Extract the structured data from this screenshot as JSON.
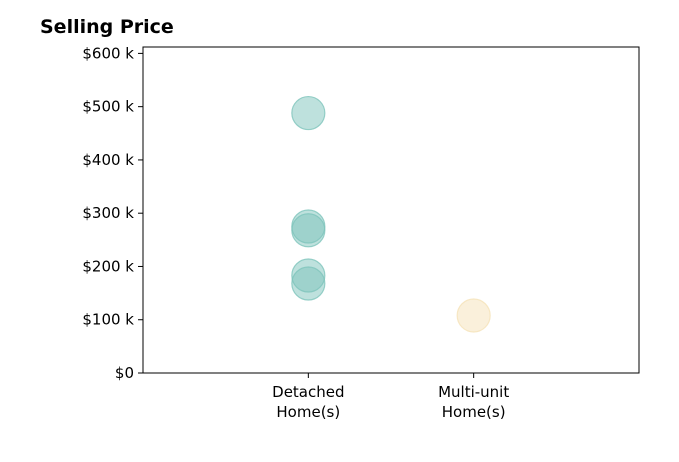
{
  "chart_data": {
    "type": "scatter",
    "title": "Selling Price",
    "xlabel": "",
    "ylabel": "",
    "categories": [
      "Detached\nHome(s)",
      "Multi-unit\nHome(s)"
    ],
    "y_ticks": [
      0,
      100000,
      200000,
      300000,
      400000,
      500000,
      600000
    ],
    "y_tick_labels": [
      "$0",
      "$100 k",
      "$200 k",
      "$300 k",
      "$400 k",
      "$500 k",
      "$600 k"
    ],
    "ylim": [
      0,
      612000
    ],
    "x_range": [
      -1,
      2
    ],
    "grid": false,
    "legend": "none",
    "series": [
      {
        "category_index": 0,
        "color": "#7ec4bc",
        "values": [
          488000,
          275000,
          268000,
          183000,
          168000
        ]
      },
      {
        "category_index": 1,
        "color": "#f5e2b8",
        "values": [
          108000
        ]
      }
    ]
  }
}
